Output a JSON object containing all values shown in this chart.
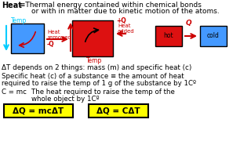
{
  "title_bold": "Heat",
  "title_rest": " ≡Thermal energy contained within chemical bonds",
  "title_line2": "or with in matter due to kinetic motion of the atoms.",
  "line3": "ΔT depends on 2 things: mass (m) and specific heat (c)",
  "line4a": "Specific heat (c) of a substance ≡ the amount of heat",
  "line4b": "required to raise the temp of 1 g of the substance by 1Cº",
  "line5a": "C = mc",
  "line5b": "The heat required to raise the temp of the",
  "line5c": "whole object by 1Cº",
  "box1_label": "ΔQ = mcΔT",
  "box2_label": "ΔQ = CΔT",
  "bg_color": "#ffffff",
  "yellow": "#ffff00",
  "blue_box": "#4499ff",
  "red_box": "#dd1111",
  "arrow_color": "#cc0000",
  "text_color": "#000000",
  "red_text": "#cc0000",
  "cyan_text": "#00ccff"
}
